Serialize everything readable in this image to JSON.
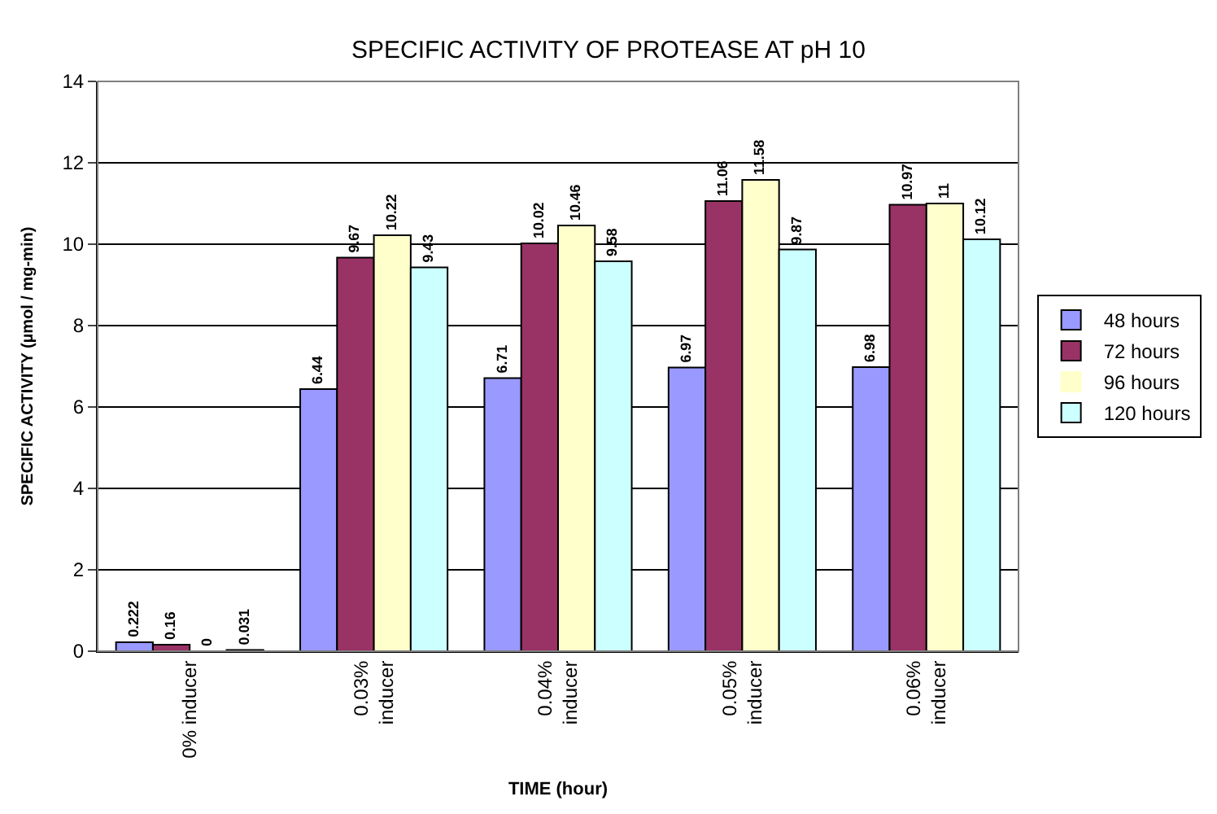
{
  "chart_data": {
    "type": "bar",
    "title": "SPECIFIC ACTIVITY OF PROTEASE AT pH 10",
    "xlabel": "TIME (hour)",
    "ylabel": "SPECIFIC ACTIVITY (µmol / mg-min)",
    "categories": [
      "0% inducer",
      "0.03%\ninducer",
      "0.04%\ninducer",
      "0.05%\ninducer",
      "0.06%\ninducer"
    ],
    "series": [
      {
        "name": "48 hours",
        "color": "#9999ff",
        "values": [
          0.222,
          6.44,
          6.71,
          6.97,
          6.98
        ]
      },
      {
        "name": "72 hours",
        "color": "#993366",
        "values": [
          0.16,
          9.67,
          10.02,
          11.06,
          10.97
        ]
      },
      {
        "name": "96 hours",
        "color": "#ffffcc",
        "values": [
          0,
          10.22,
          10.46,
          11.58,
          11
        ]
      },
      {
        "name": "120 hours",
        "color": "#ccffff",
        "values": [
          0.031,
          9.43,
          9.58,
          9.87,
          10.12
        ]
      }
    ],
    "ylim": [
      0,
      14
    ],
    "yticks": [
      0,
      2,
      4,
      6,
      8,
      10,
      12,
      14
    ],
    "grid": "y",
    "legend": "right",
    "data_labels": true
  }
}
